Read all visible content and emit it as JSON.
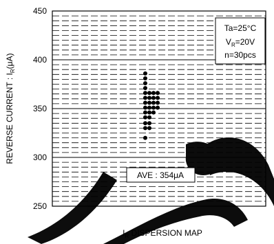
{
  "chart_data": {
    "type": "scatter",
    "title": "",
    "xlabel": "I_R DISPERSION MAP",
    "ylabel": "REVERSE CURRENT : I_R(μA)",
    "ylim": [
      250,
      450
    ],
    "yticks": [
      250,
      300,
      350,
      400,
      450
    ],
    "grid": true,
    "conditions": [
      "Ta=25°C",
      "V_R=20V",
      "n=30pcs"
    ],
    "annotation": "AVE : 354μA",
    "points": [
      {
        "col": 0,
        "y": 386
      },
      {
        "col": 0,
        "y": 381
      },
      {
        "col": 0,
        "y": 376
      },
      {
        "col": 0,
        "y": 371
      },
      {
        "col": 0,
        "y": 366
      },
      {
        "col": 1,
        "y": 366
      },
      {
        "col": 2,
        "y": 366
      },
      {
        "col": 3,
        "y": 366
      },
      {
        "col": 0,
        "y": 361
      },
      {
        "col": 1,
        "y": 361
      },
      {
        "col": 2,
        "y": 361
      },
      {
        "col": 3,
        "y": 361
      },
      {
        "col": 0,
        "y": 356
      },
      {
        "col": 1,
        "y": 356
      },
      {
        "col": 2,
        "y": 356
      },
      {
        "col": 3,
        "y": 356
      },
      {
        "col": 0,
        "y": 351
      },
      {
        "col": 1,
        "y": 351
      },
      {
        "col": 2,
        "y": 351
      },
      {
        "col": 3,
        "y": 351
      },
      {
        "col": 0,
        "y": 346
      },
      {
        "col": 1,
        "y": 346
      },
      {
        "col": 2,
        "y": 346
      },
      {
        "col": 0,
        "y": 341
      },
      {
        "col": 1,
        "y": 341
      },
      {
        "col": 0,
        "y": 335
      },
      {
        "col": 1,
        "y": 335
      },
      {
        "col": 0,
        "y": 330
      },
      {
        "col": 1,
        "y": 330
      },
      {
        "col": 0,
        "y": 320
      }
    ]
  },
  "labels": {
    "ylabel_main": "REVERSE CURRENT : I",
    "ylabel_sub": "R",
    "ylabel_tail": "(μA)",
    "xlabel_main": "I",
    "xlabel_sub": "R",
    "xlabel_tail": " DISPERSION MAP",
    "cond_ta": "Ta=25°C",
    "cond_vr_main": "V",
    "cond_vr_sub": "R",
    "cond_vr_tail": "=20V",
    "cond_n": "n=30pcs",
    "ave": "AVE : 354μA"
  },
  "colors": {
    "ink": "#000000",
    "background": "#ffffff",
    "watermark": "#000000"
  }
}
